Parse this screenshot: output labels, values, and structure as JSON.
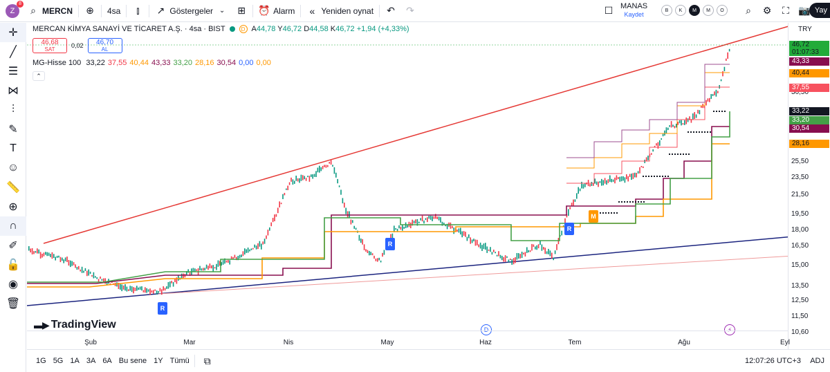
{
  "topbar": {
    "avatar_letter": "Z",
    "notification_count": "8",
    "symbol": "MERCN",
    "interval": "4sa",
    "indicators_label": "Göstergeler",
    "alarm_label": "Alarm",
    "replay_label": "Yeniden oynat",
    "layout_name": "MANAS",
    "layout_save": "Kaydet",
    "mode_letters": [
      "B",
      "K",
      "M",
      "M",
      "O"
    ],
    "publish_label": "Yay"
  },
  "legend": {
    "title": "MERCAN KİMYA SANAYİ VE TİCARET A.Ş. · 4sa · BIST",
    "currency_badge": "D",
    "o": "44,78",
    "h": "46,72",
    "l": "44,58",
    "c": "46,72",
    "change": "+1,94 (+4,33%)",
    "sell_price": "46,68",
    "sell_label": "SAT",
    "spread": "0,02",
    "buy_price": "46,70",
    "buy_label": "AL"
  },
  "indicator": {
    "name": "MG-Hisse 100",
    "values": [
      {
        "v": "33,22",
        "color": "#131722"
      },
      {
        "v": "37,55",
        "color": "#f23645"
      },
      {
        "v": "40,44",
        "color": "#ff9800"
      },
      {
        "v": "43,33",
        "color": "#880e4f"
      },
      {
        "v": "33,20",
        "color": "#43a047"
      },
      {
        "v": "28,16",
        "color": "#ff9800"
      },
      {
        "v": "30,54",
        "color": "#880e4f"
      },
      {
        "v": "0,00",
        "color": "#2962ff"
      },
      {
        "v": "0,00",
        "color": "#ff9800"
      }
    ]
  },
  "price_axis": {
    "currency": "TRY",
    "ticks": [
      "25,50",
      "23,50",
      "21,50",
      "19,50",
      "18,00",
      "16,50",
      "15,00",
      "13,50",
      "12,50",
      "11,50",
      "10,60"
    ],
    "tags": [
      {
        "v": "46,72",
        "sub": "01:07:33",
        "bg": "#22ab3a",
        "fg": "#131722"
      },
      {
        "v": "43,33",
        "bg": "#880e4f",
        "fg": "#ffffff"
      },
      {
        "v": "40,44",
        "bg": "#ff9800",
        "fg": "#131722"
      },
      {
        "v": "37,55",
        "bg": "#f7525f",
        "fg": "#ffffff"
      },
      {
        "v": "33,22",
        "bg": "#131722",
        "fg": "#ffffff"
      },
      {
        "v": "33,20",
        "bg": "#43a047",
        "fg": "#ffffff"
      },
      {
        "v": "30,54",
        "bg": "#880e4f",
        "fg": "#ffffff"
      },
      {
        "v": "28,16",
        "bg": "#ff9800",
        "fg": "#131722"
      }
    ],
    "partial_ticks": [
      "36,50"
    ]
  },
  "time_axis": [
    "Şub",
    "Mar",
    "Nis",
    "May",
    "Haz",
    "Tem",
    "Ağu",
    "Eyl"
  ],
  "markers": {
    "r": "R",
    "m": "M",
    "d": "D"
  },
  "logo": "TradingView",
  "bottom": {
    "ranges": [
      "1G",
      "5G",
      "1A",
      "3A",
      "6A",
      "Bu sene",
      "1Y",
      "Tümü"
    ],
    "clock": "12:07:26 UTC+3",
    "adj": "ADJ"
  },
  "colors": {
    "up": "#089981",
    "down": "#f23645",
    "channel_upper": "#e53935",
    "trend_lower": "#1a237e",
    "trend_lower2": "#ef9a9a"
  }
}
